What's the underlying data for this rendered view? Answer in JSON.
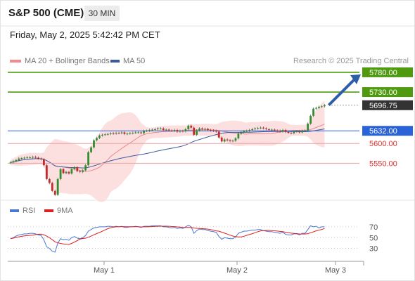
{
  "header": {
    "symbol": "S&P 500 (CME)",
    "interval": "30 MIN",
    "datetime": "Friday, May 2, 2025 5:42:42 PM CET"
  },
  "legend": {
    "bollinger_label": "MA 20 + Bollinger Bands",
    "ma50_label": "MA 50",
    "bollinger_color": "#f08c8c",
    "ma50_color": "#3a5aa0",
    "credit": "Research © 2025 Trading Central"
  },
  "chart_data": {
    "type": "candlestick",
    "x_ticks": [
      "May 1",
      "May 2",
      "May 3"
    ],
    "price_levels": [
      {
        "label": "5780.00",
        "value": 5780,
        "style": "resistance"
      },
      {
        "label": "5730.00",
        "value": 5730,
        "style": "resistance"
      },
      {
        "label": "5696.75",
        "value": 5696.75,
        "style": "last"
      },
      {
        "label": "5632.00",
        "value": 5632,
        "style": "pivot"
      },
      {
        "label": "5600.00",
        "value": 5600,
        "style": "support"
      },
      {
        "label": "5550.00",
        "value": 5550,
        "style": "support"
      }
    ],
    "forecast": {
      "from": 5697,
      "to": 5780,
      "direction": "up"
    },
    "closes": [
      5552,
      5555,
      5558,
      5562,
      5563,
      5564,
      5565,
      5565,
      5566,
      5564,
      5562,
      5560,
      5545,
      5510,
      5500,
      5480,
      5470,
      5510,
      5535,
      5525,
      5528,
      5524,
      5535,
      5540,
      5530,
      5528,
      5532,
      5545,
      5578,
      5590,
      5608,
      5614,
      5620,
      5622,
      5623,
      5624,
      5626,
      5625,
      5627,
      5626,
      5628,
      5624,
      5625,
      5626,
      5627,
      5628,
      5628,
      5626,
      5632,
      5632,
      5634,
      5635,
      5636,
      5638,
      5638,
      5634,
      5635,
      5633,
      5632,
      5634,
      5630,
      5632,
      5631,
      5636,
      5645,
      5640,
      5622,
      5633,
      5638,
      5636,
      5637,
      5634,
      5633,
      5632,
      5630,
      5615,
      5605,
      5610,
      5608,
      5606,
      5607,
      5613,
      5625,
      5628,
      5631,
      5632,
      5634,
      5636,
      5638,
      5639,
      5640,
      5638,
      5636,
      5634,
      5635,
      5633,
      5632,
      5630,
      5634,
      5629,
      5627,
      5626,
      5630,
      5631,
      5628,
      5632,
      5633,
      5650,
      5670,
      5688,
      5690,
      5693,
      5694,
      5697
    ],
    "rsi": {
      "levels": [
        70,
        50,
        30
      ],
      "values": [
        48,
        50,
        53,
        55,
        56,
        57,
        57,
        58,
        58,
        57,
        55,
        54,
        46,
        33,
        30,
        25,
        23,
        40,
        48,
        46,
        47,
        45,
        50,
        52,
        49,
        48,
        50,
        54,
        62,
        65,
        68,
        69,
        70,
        70,
        70,
        71,
        71,
        70,
        71,
        70,
        71,
        69,
        69,
        70,
        70,
        71,
        70,
        69,
        71,
        71,
        71,
        72,
        72,
        72,
        72,
        70,
        70,
        69,
        68,
        69,
        67,
        68,
        67,
        70,
        73,
        70,
        58,
        63,
        66,
        65,
        65,
        63,
        62,
        61,
        60,
        52,
        47,
        50,
        49,
        48,
        48,
        51,
        58,
        60,
        62,
        62,
        63,
        64,
        64,
        65,
        65,
        63,
        62,
        61,
        61,
        60,
        59,
        58,
        60,
        56,
        55,
        55,
        57,
        57,
        55,
        58,
        58,
        65,
        72,
        70,
        71,
        68,
        70,
        70
      ]
    }
  },
  "rsi_legend": {
    "rsi_label": "RSI",
    "ma_label": "9MA",
    "rsi_color": "#4a78d0",
    "ma_color": "#e02020"
  }
}
